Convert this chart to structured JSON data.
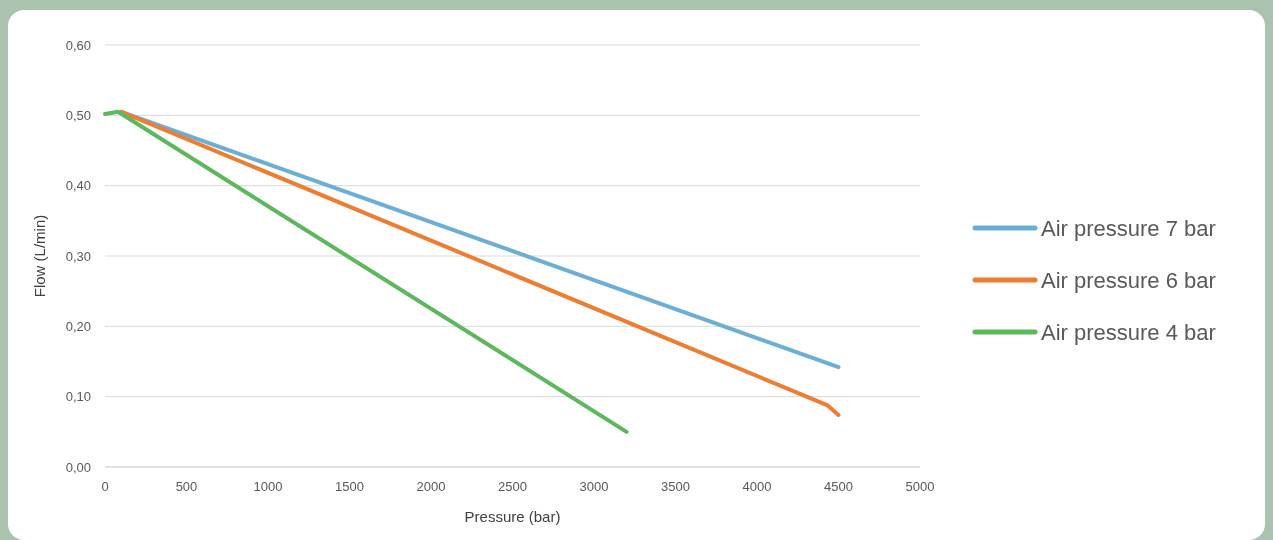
{
  "chart_data": {
    "type": "line",
    "xlabel": "Pressure (bar)",
    "ylabel": "Flow (L/min)",
    "xlim": [
      0,
      5000
    ],
    "xticks": [
      0,
      500,
      1000,
      1500,
      2000,
      2500,
      3000,
      3500,
      4000,
      4500,
      5000
    ],
    "ylim": [
      0,
      0.6
    ],
    "yticks": [
      {
        "value": 0,
        "label": "0,00"
      },
      {
        "value": 0.1,
        "label": "0,10"
      },
      {
        "value": 0.2,
        "label": "0,20"
      },
      {
        "value": 0.3,
        "label": "0,30"
      },
      {
        "value": 0.4,
        "label": "0,40"
      },
      {
        "value": 0.5,
        "label": "0,50"
      },
      {
        "value": 0.6,
        "label": "0,60"
      }
    ],
    "grid": "y",
    "legend": "right",
    "marker": "none",
    "line_style": "solid",
    "series": [
      {
        "name": "Air pressure 7 bar",
        "color": "#6baed6",
        "x": [
          100,
          4500
        ],
        "values": [
          0.505,
          0.142
        ]
      },
      {
        "name": "Air pressure 6 bar",
        "color": "#ed7d31",
        "x": [
          100,
          4430,
          4500
        ],
        "values": [
          0.505,
          0.088,
          0.074
        ]
      },
      {
        "name": "Air pressure 4 bar",
        "color": "#5cb85c",
        "x": [
          0,
          80,
          3200
        ],
        "values": [
          0.502,
          0.505,
          0.05
        ]
      }
    ]
  }
}
